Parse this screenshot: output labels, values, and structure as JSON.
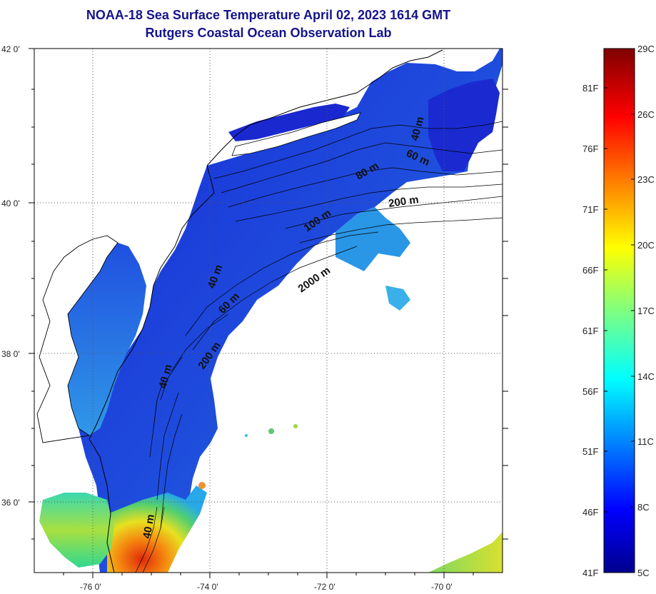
{
  "title_line1": "NOAA-18 Sea Surface Temperature April 02, 2023 1614 GMT",
  "title_line2": "Rutgers Coastal Ocean Observation Lab",
  "map": {
    "lat_ticks": [
      "42 0'",
      "40 0'",
      "38 0'",
      "36 0'"
    ],
    "lon_ticks": [
      "-76 0'",
      "-74 0'",
      "-72 0'",
      "-70 0'"
    ],
    "contour_labels": [
      "40 m",
      "40 m",
      "40 m",
      "60 m",
      "60 m",
      "80 m",
      "100 m",
      "200 m",
      "200 m",
      "2000 m",
      "40 m"
    ],
    "colors": {
      "land": "#ffffff",
      "coast": "#000000",
      "cold_water": "#1e3cdc",
      "warm_water": "#e03a10"
    }
  },
  "colorbar": {
    "celsius_labels": [
      "29C",
      "26C",
      "23C",
      "20C",
      "17C",
      "14C",
      "11C",
      "8C",
      "5C"
    ],
    "fahrenheit_labels": [
      "81F",
      "76F",
      "71F",
      "66F",
      "61F",
      "56F",
      "51F",
      "46F",
      "41F"
    ],
    "range_celsius": [
      5,
      29
    ],
    "colormap": "jet"
  }
}
